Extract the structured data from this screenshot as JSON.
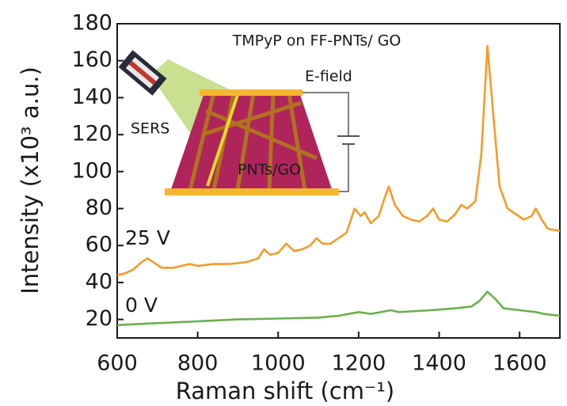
{
  "chart_data": {
    "type": "line",
    "x_label": "Raman shift (cm⁻¹)",
    "y_label": "Intensity (x10³ a.u.)",
    "xlim": [
      600,
      1700
    ],
    "xticks": [
      600,
      800,
      1000,
      1200,
      1400,
      1600
    ],
    "ylim": [
      10,
      180
    ],
    "yticks": [
      20,
      40,
      60,
      80,
      100,
      120,
      140,
      160,
      180
    ],
    "grid": false,
    "annotations": [
      "TMPyP on FF-PNTs/ GO",
      "E-field",
      "SERS",
      "PNTs/GO"
    ],
    "series": [
      {
        "name": "25 V",
        "color": "#f39c2a",
        "x": [
          600,
          620,
          640,
          660,
          675,
          690,
          710,
          740,
          780,
          800,
          840,
          880,
          920,
          950,
          965,
          980,
          1000,
          1020,
          1040,
          1060,
          1080,
          1095,
          1110,
          1130,
          1150,
          1170,
          1190,
          1205,
          1215,
          1230,
          1250,
          1265,
          1275,
          1290,
          1310,
          1330,
          1350,
          1370,
          1385,
          1400,
          1420,
          1440,
          1455,
          1470,
          1490,
          1505,
          1520,
          1535,
          1550,
          1570,
          1590,
          1610,
          1630,
          1640,
          1655,
          1670,
          1700
        ],
        "values": [
          44,
          45,
          47,
          51,
          53,
          51,
          48,
          48,
          50,
          49,
          50,
          50,
          51,
          53,
          58,
          55,
          56,
          61,
          57,
          58,
          60,
          64,
          61,
          61,
          64,
          67,
          80,
          76,
          78,
          72,
          76,
          86,
          92,
          82,
          76,
          74,
          73,
          76,
          80,
          74,
          73,
          77,
          82,
          80,
          84,
          110,
          168,
          130,
          92,
          80,
          77,
          74,
          76,
          80,
          74,
          69,
          68
        ]
      },
      {
        "name": "0 V",
        "color": "#6ab04c",
        "x": [
          600,
          700,
          800,
          900,
          1000,
          1100,
          1150,
          1200,
          1230,
          1280,
          1300,
          1380,
          1440,
          1480,
          1500,
          1520,
          1540,
          1560,
          1600,
          1640,
          1660,
          1700
        ],
        "values": [
          17,
          18,
          19,
          20,
          20.5,
          21,
          22,
          24,
          23,
          25,
          24,
          25,
          26,
          27,
          30,
          35,
          31,
          26,
          25,
          24,
          23,
          22
        ]
      }
    ]
  }
}
